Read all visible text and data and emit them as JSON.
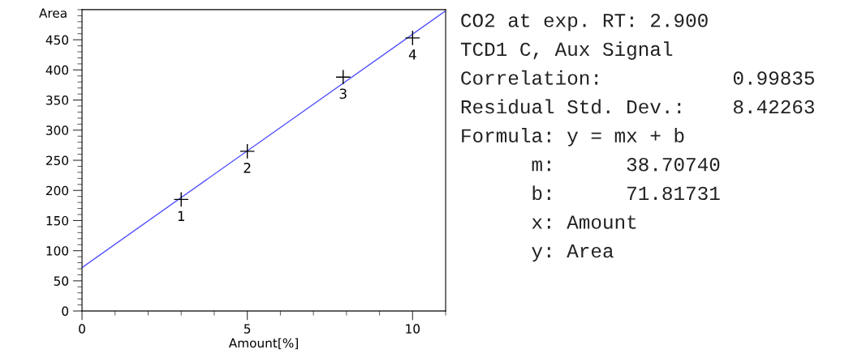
{
  "chart_data": {
    "type": "scatter",
    "xlabel": "Amount[%]",
    "ylabel": "Area",
    "xlim": [
      0,
      11
    ],
    "xticks": [
      0,
      5,
      10
    ],
    "ylim": [
      0,
      500
    ],
    "yticks": [
      0,
      50,
      100,
      150,
      200,
      250,
      300,
      350,
      400,
      450
    ],
    "marker": "cross",
    "grid": false,
    "legend": false,
    "series": [
      {
        "color": "#000000",
        "x": [
          3,
          5,
          7.9,
          10
        ],
        "values": [
          185,
          265,
          388,
          453
        ]
      },
      {
        "type": "line",
        "color": "#5050ff",
        "x": [
          0,
          11
        ],
        "values": [
          72,
          498
        ],
        "marker": "none"
      }
    ],
    "annotations": [
      {
        "text": "1",
        "x": 3,
        "y": 185
      },
      {
        "text": "2",
        "x": 5,
        "y": 265
      },
      {
        "text": "3",
        "x": 7.9,
        "y": 388
      },
      {
        "text": "4",
        "x": 10,
        "y": 453
      },
      "CO2 at exp. RT: 2.900",
      "TCD1 C, Aux Signal",
      "Correlation:           0.99835",
      "Residual Std. Dev.:    8.42263",
      "Formula: y = mx + b",
      "      m:      38.70740",
      "      b:      71.81731",
      "      x: Amount",
      "      y: Area"
    ]
  }
}
